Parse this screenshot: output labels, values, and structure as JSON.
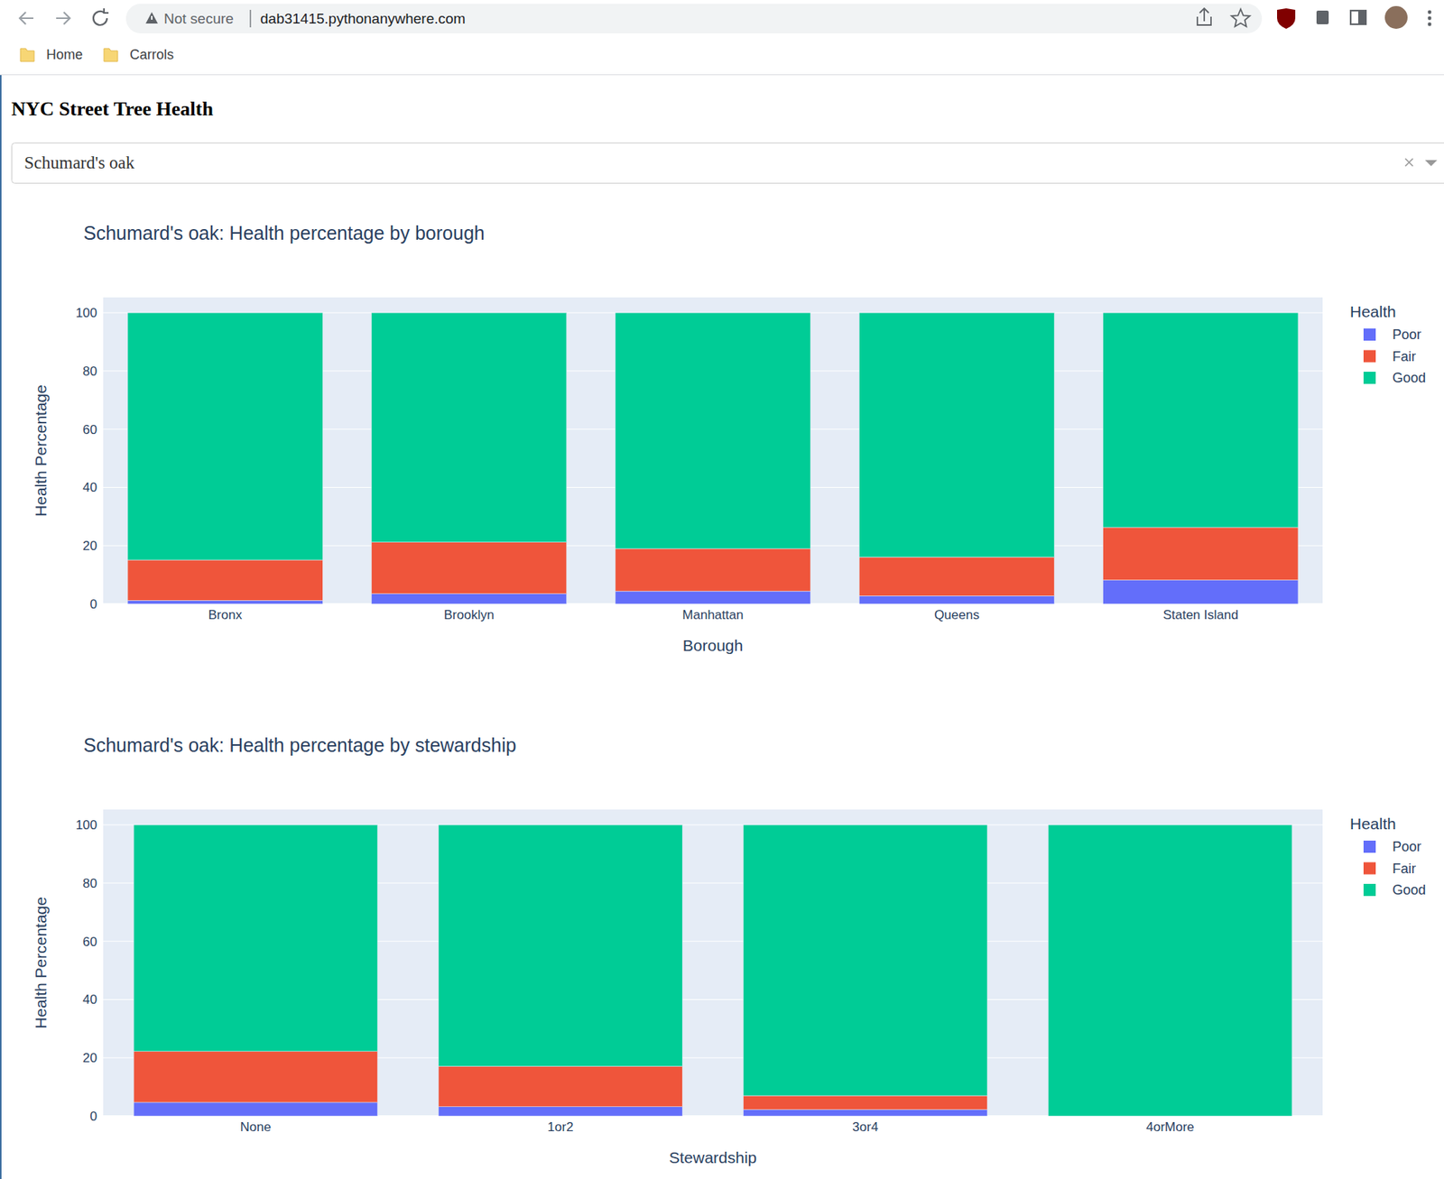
{
  "page": {
    "browser": {
      "security": "Not secure",
      "url": "dab31415.pythonanywhere.com",
      "bookmarks": [
        "Home",
        "Carrols"
      ]
    },
    "heading": "NYC Street Tree Health",
    "dropdown": {
      "value": "Schumard's oak"
    }
  },
  "chart_data": [
    {
      "type": "bar",
      "stacked": true,
      "title": "Schumard's oak: Health percentage by borough",
      "x_label": "Borough",
      "y_label": "Health Percentage",
      "categories": [
        "Bronx",
        "Brooklyn",
        "Manhattan",
        "Queens",
        "Staten Island"
      ],
      "series": [
        {
          "name": "Poor",
          "color": "#636efa",
          "values": [
            1.2,
            3.5,
            4.4,
            2.8,
            8.2
          ]
        },
        {
          "name": "Fair",
          "color": "#EF553B",
          "values": [
            13.9,
            17.7,
            14.6,
            13.3,
            18.1
          ]
        },
        {
          "name": "Good",
          "color": "#00cc96",
          "values": [
            84.9,
            78.8,
            81.0,
            83.9,
            73.7
          ]
        }
      ],
      "ylim": [
        0,
        105.26
      ],
      "yticks": [
        0,
        20,
        40,
        60,
        80,
        100
      ],
      "grid": true,
      "legend": "right",
      "legend_title": "Health"
    },
    {
      "type": "bar",
      "stacked": true,
      "title": "Schumard's oak: Health percentage by stewardship",
      "x_label": "Stewardship",
      "y_label": "Health Percentage",
      "categories": [
        "None",
        "1or2",
        "3or4",
        "4orMore"
      ],
      "series": [
        {
          "name": "Poor",
          "color": "#636efa",
          "values": [
            4.7,
            3.2,
            2.2,
            0
          ]
        },
        {
          "name": "Fair",
          "color": "#EF553B",
          "values": [
            17.5,
            13.9,
            4.8,
            0
          ]
        },
        {
          "name": "Good",
          "color": "#00cc96",
          "values": [
            77.8,
            82.9,
            93.0,
            100
          ]
        }
      ],
      "ylim": [
        0,
        105.26
      ],
      "yticks": [
        0,
        20,
        40,
        60,
        80,
        100
      ],
      "grid": true,
      "legend": "right",
      "legend_title": "Health"
    }
  ]
}
